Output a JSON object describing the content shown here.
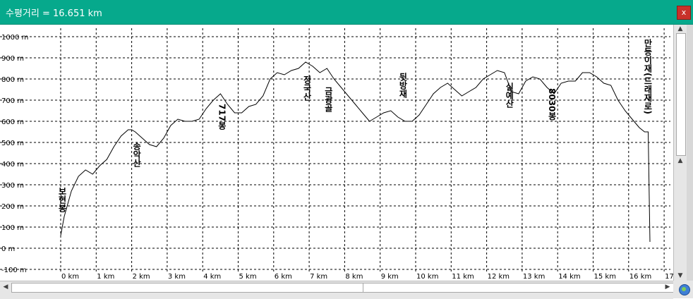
{
  "window": {
    "title": "수평거리 = 16.651 km",
    "close_label": "x"
  },
  "colors": {
    "titlebar": "#06a98c",
    "line": "#000000",
    "grid": "#000000"
  },
  "icons": {
    "close": "close-icon",
    "globe": "globe-icon",
    "scroll_up": "up-arrow-icon",
    "scroll_down": "down-arrow-icon",
    "scroll_left": "left-arrow-icon",
    "scroll_right": "right-arrow-icon"
  },
  "chart_data": {
    "type": "line",
    "xunit": "km",
    "yunit": "m",
    "xlim": [
      0,
      17
    ],
    "ylim": [
      -100,
      1000
    ],
    "x_ticks": [
      0,
      1,
      2,
      3,
      4,
      5,
      6,
      7,
      8,
      9,
      10,
      11,
      12,
      13,
      14,
      15,
      16,
      17
    ],
    "x_tick_labels": [
      "0 km",
      "1 km",
      "2 km",
      "3 km",
      "4 km",
      "5 km",
      "6 km",
      "7 km",
      "8 km",
      "9 km",
      "10 km",
      "11 km",
      "12 km",
      "13 km",
      "14 km",
      "15 km",
      "16 km",
      "17"
    ],
    "y_ticks": [
      1000,
      900,
      800,
      700,
      600,
      500,
      400,
      300,
      200,
      100,
      0,
      -100
    ],
    "y_tick_labels": [
      "1000 m",
      "900 m",
      "800 m",
      "700 m",
      "600 m",
      "500 m",
      "400 m",
      "300 m",
      "200 m",
      "100 m",
      "0 m",
      "-100 m"
    ],
    "grid": true,
    "series": [
      {
        "x": [
          0,
          0.1,
          0.3,
          0.5,
          0.7,
          0.9,
          1.1,
          1.3,
          1.5,
          1.7,
          1.9,
          2.0,
          2.1,
          2.3,
          2.5,
          2.7,
          2.9,
          3.1,
          3.3,
          3.5,
          3.7,
          3.9,
          4.1,
          4.3,
          4.5,
          4.7,
          4.9,
          5.1,
          5.3,
          5.5,
          5.7,
          5.9,
          6.1,
          6.3,
          6.5,
          6.7,
          6.9,
          7.1,
          7.3,
          7.5,
          7.7,
          7.9,
          8.1,
          8.3,
          8.5,
          8.7,
          8.9,
          9.1,
          9.3,
          9.5,
          9.7,
          9.9,
          10.1,
          10.3,
          10.5,
          10.7,
          10.9,
          11.1,
          11.3,
          11.5,
          11.7,
          11.9,
          12.1,
          12.3,
          12.5,
          12.7,
          12.9,
          13.1,
          13.3,
          13.5,
          13.7,
          13.9,
          14.1,
          14.3,
          14.5,
          14.7,
          14.9,
          15.1,
          15.3,
          15.5,
          15.7,
          15.9,
          16.1,
          16.3,
          16.45,
          16.55,
          16.6
        ],
        "y": [
          60,
          150,
          270,
          340,
          370,
          350,
          390,
          420,
          480,
          530,
          560,
          560,
          550,
          520,
          490,
          480,
          520,
          580,
          610,
          600,
          600,
          610,
          660,
          700,
          730,
          680,
          640,
          640,
          670,
          680,
          720,
          800,
          830,
          820,
          840,
          850,
          880,
          860,
          830,
          850,
          800,
          760,
          720,
          680,
          640,
          600,
          620,
          640,
          650,
          620,
          600,
          600,
          630,
          680,
          730,
          760,
          780,
          750,
          720,
          740,
          760,
          800,
          820,
          840,
          830,
          740,
          730,
          790,
          810,
          800,
          760,
          730,
          780,
          790,
          790,
          830,
          830,
          810,
          780,
          770,
          700,
          650,
          610,
          570,
          550,
          550,
          30
        ]
      }
    ],
    "annotations": [
      {
        "text": "보현봉",
        "x": 0.0
      },
      {
        "text": "송악산",
        "x": 2.1
      },
      {
        "text": "717봉",
        "x": 4.5
      },
      {
        "text": "정국산",
        "x": 6.9
      },
      {
        "text": "금광골",
        "x": 7.5
      },
      {
        "text": "뒷방재",
        "x": 9.6
      },
      {
        "text": "실예산",
        "x": 12.6
      },
      {
        "text": "8030봉",
        "x": 13.8
      },
      {
        "text": "만등이재(드래재로)",
        "x": 16.5
      }
    ]
  }
}
